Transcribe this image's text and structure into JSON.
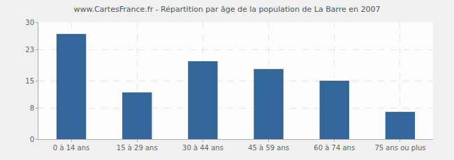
{
  "chart_data": {
    "type": "bar",
    "title": "www.CartesFrance.fr - Répartition par âge de la population de La Barre en 2007",
    "categories": [
      "0 à 14 ans",
      "15 à 29 ans",
      "30 à 44 ans",
      "45 à 59 ans",
      "60 à 74 ans",
      "75 ans ou plus"
    ],
    "values": [
      27,
      12,
      20,
      18,
      15,
      7
    ],
    "color": "#336699",
    "ylim": [
      0,
      30
    ],
    "yticks": [
      0,
      8,
      15,
      23,
      30
    ],
    "grid": true
  }
}
